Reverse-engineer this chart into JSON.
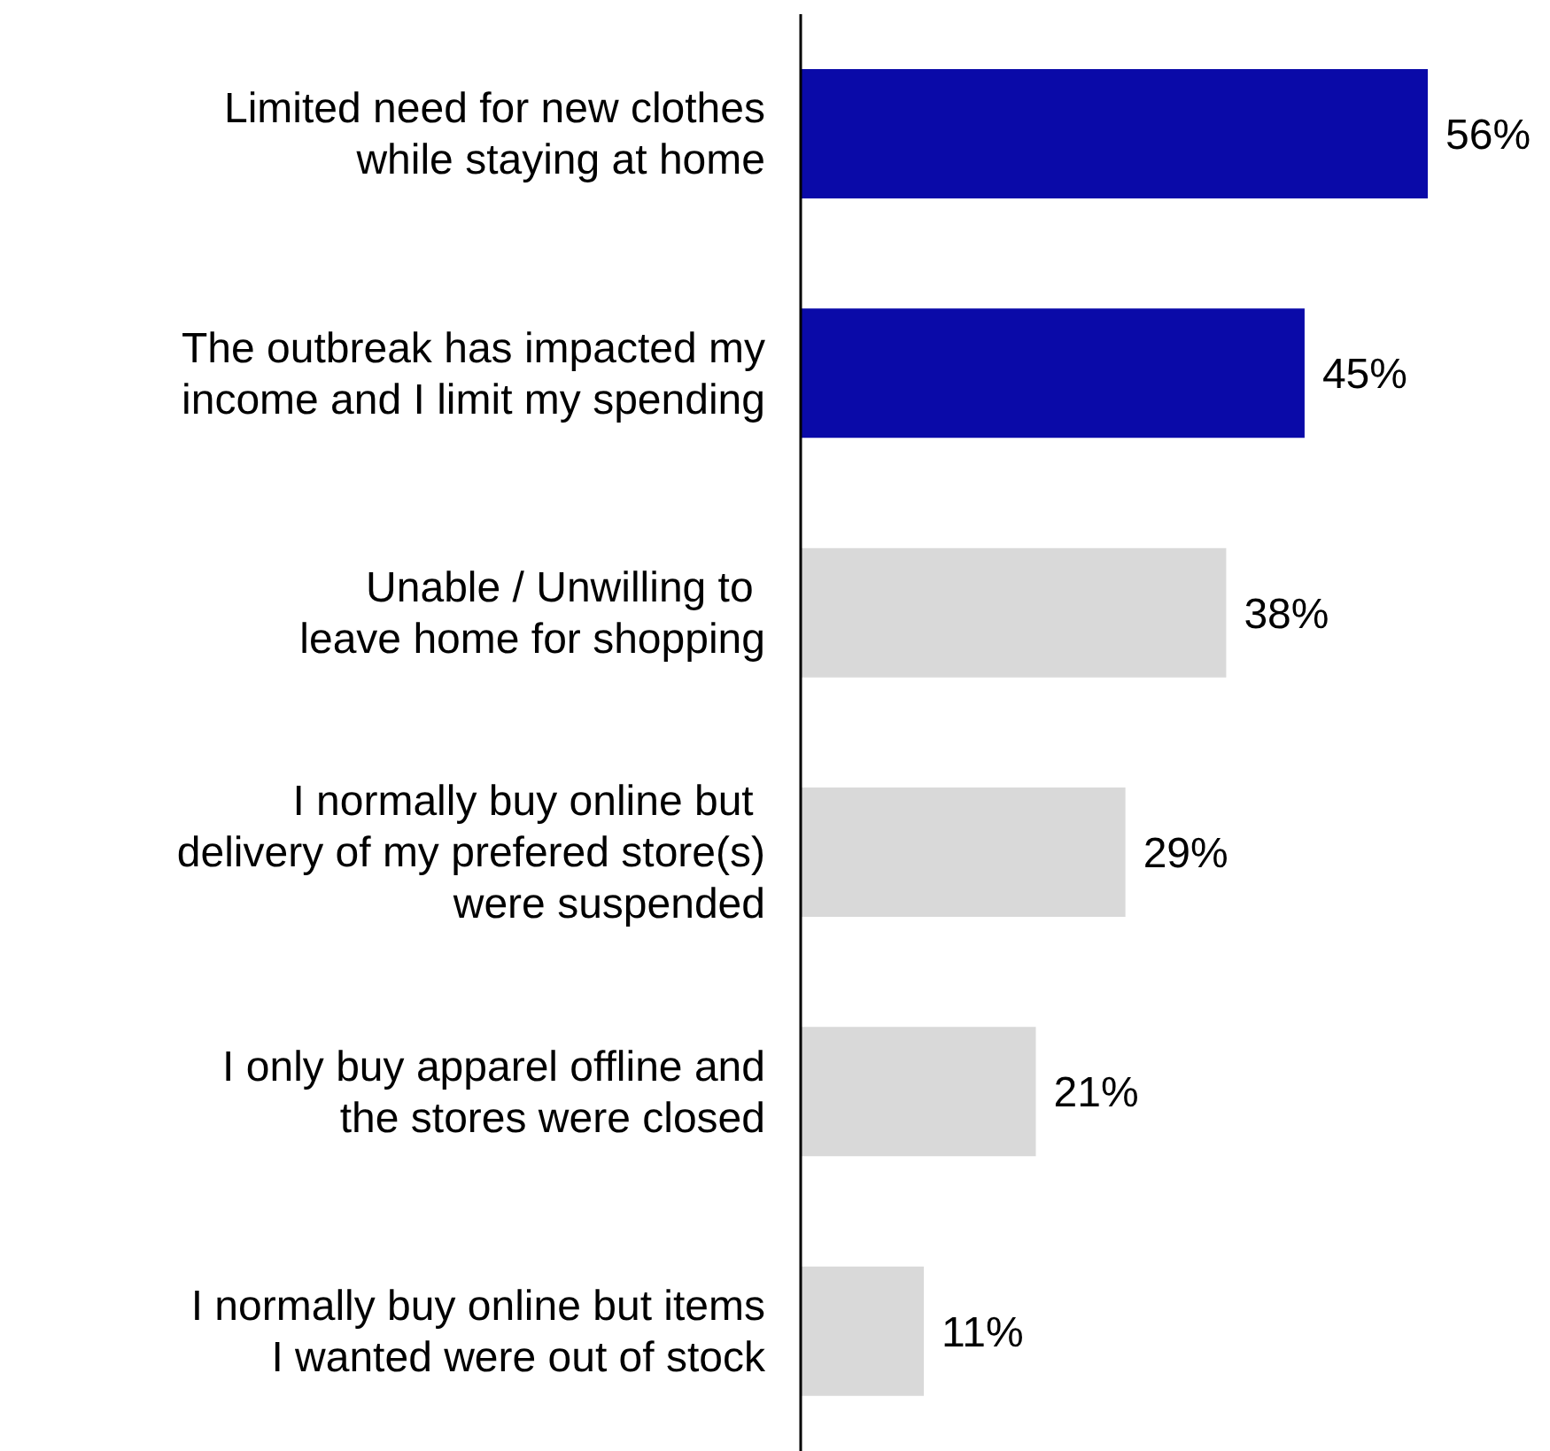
{
  "chart_data": {
    "type": "bar",
    "orientation": "horizontal",
    "categories": [
      "Limited need for new clothes\nwhile staying at home",
      "The outbreak has impacted my\nincome and I limit my spending",
      "Unable / Unwilling to \nleave home for shopping",
      "I normally buy online but \ndelivery of my prefered store(s)\nwere suspended",
      "I only buy apparel offline and\nthe stores were closed",
      "I normally buy online but items\nI wanted were out of stock"
    ],
    "values": [
      56,
      45,
      38,
      29,
      21,
      11
    ],
    "colors": [
      "#0a0aa8",
      "#0a0aa8",
      "#d9d9d9",
      "#d9d9d9",
      "#d9d9d9",
      "#d9d9d9"
    ],
    "value_labels": [
      "56%",
      "45%",
      "38%",
      "29%",
      "21%",
      "11%"
    ],
    "grid": false,
    "legend": false
  }
}
